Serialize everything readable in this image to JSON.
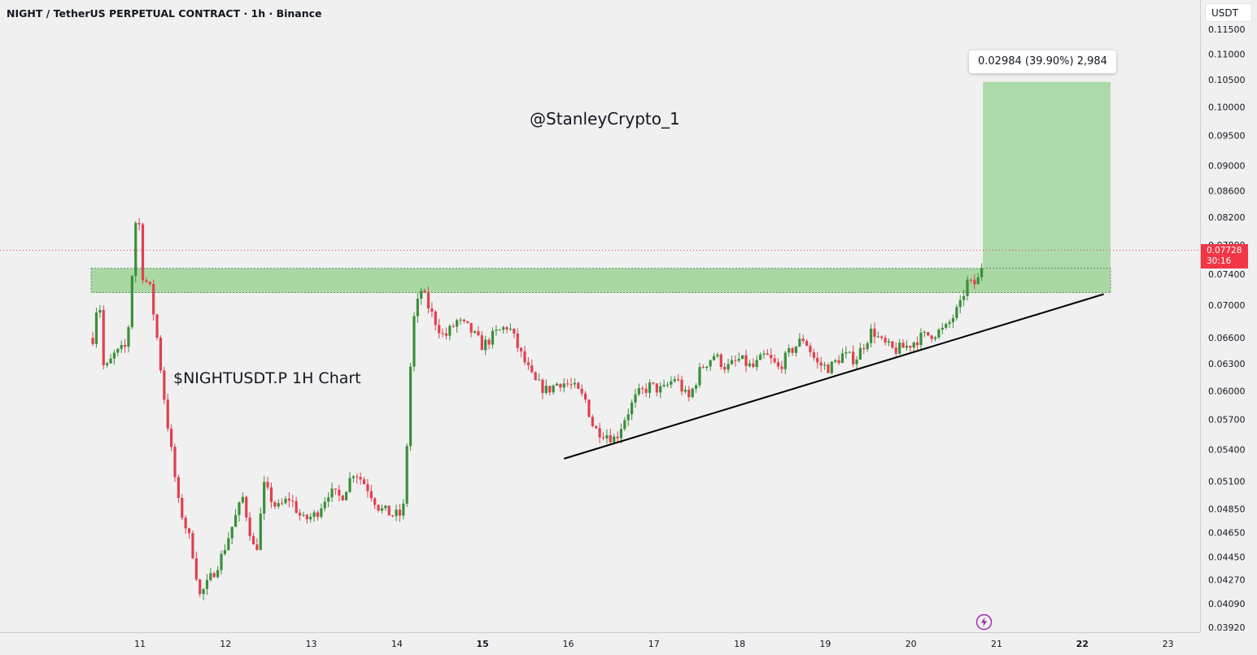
{
  "header": {
    "title": "NIGHT / TetherUS PERPETUAL CONTRACT · 1h · Binance"
  },
  "price_axis": {
    "currency": "USDT"
  },
  "annotations": {
    "watermark": "@StanleyCrypto_1",
    "chart_label": "$NIGHTUSDT.P 1H Chart",
    "measure_label": "0.02984 (39.90%) 2,984"
  },
  "last_price": {
    "value": "0.07728",
    "countdown": "30:16"
  },
  "colors": {
    "up": "#26a69a",
    "candle_up": "#3a8f3a",
    "candle_down": "#e0404f",
    "zone_fill": "#a9d8a5",
    "last_price": "#f23645",
    "trendline": "#000000"
  },
  "chart_data": {
    "type": "candlestick",
    "scale": "log",
    "ylim": [
      0.0385,
      0.119
    ],
    "y_ticks": [
      "0.11500",
      "0.11000",
      "0.10500",
      "0.10000",
      "0.09500",
      "0.09000",
      "0.08600",
      "0.08200",
      "0.07800",
      "0.07400",
      "0.07000",
      "0.06600",
      "0.06300",
      "0.06000",
      "0.05700",
      "0.05400",
      "0.05100",
      "0.04850",
      "0.04650",
      "0.04450",
      "0.04270",
      "0.04090",
      "0.03920"
    ],
    "x_ticks": [
      {
        "label": "11",
        "day": 11,
        "bold": false
      },
      {
        "label": "12",
        "day": 12,
        "bold": false
      },
      {
        "label": "13",
        "day": 13,
        "bold": false
      },
      {
        "label": "14",
        "day": 14,
        "bold": false
      },
      {
        "label": "15",
        "day": 15,
        "bold": true
      },
      {
        "label": "16",
        "day": 16,
        "bold": false
      },
      {
        "label": "17",
        "day": 17,
        "bold": false
      },
      {
        "label": "18",
        "day": 18,
        "bold": false
      },
      {
        "label": "19",
        "day": 19,
        "bold": false
      },
      {
        "label": "20",
        "day": 20,
        "bold": false
      },
      {
        "label": "21",
        "day": 21,
        "bold": false
      },
      {
        "label": "22",
        "day": 22,
        "bold": true
      },
      {
        "label": "23",
        "day": 23,
        "bold": false
      }
    ],
    "last_price": 0.07728,
    "support_zone": {
      "from_day": 10.43,
      "to_day": 22.33,
      "low": 0.0716,
      "high": 0.0748
    },
    "trendline": {
      "start": {
        "day": 15.95,
        "price": 0.0531
      },
      "end": {
        "day": 22.25,
        "price": 0.0714
      }
    },
    "target_box": {
      "from_day": 20.84,
      "to_day": 22.33,
      "low": 0.0748,
      "high": 0.1046,
      "change": "0.02984",
      "percent": "39.90%",
      "ticks": "2,984"
    },
    "waypoints": [
      [
        10.45,
        0.066
      ],
      [
        10.52,
        0.072
      ],
      [
        10.58,
        0.062
      ],
      [
        10.7,
        0.064
      ],
      [
        10.85,
        0.065
      ],
      [
        10.97,
        0.085
      ],
      [
        11.03,
        0.074
      ],
      [
        11.12,
        0.072
      ],
      [
        11.2,
        0.066
      ],
      [
        11.3,
        0.058
      ],
      [
        11.45,
        0.049
      ],
      [
        11.6,
        0.0455
      ],
      [
        11.7,
        0.0415
      ],
      [
        11.8,
        0.0425
      ],
      [
        11.95,
        0.0445
      ],
      [
        12.1,
        0.0475
      ],
      [
        12.2,
        0.0495
      ],
      [
        12.35,
        0.0445
      ],
      [
        12.45,
        0.0505
      ],
      [
        12.6,
        0.0485
      ],
      [
        12.75,
        0.0495
      ],
      [
        12.9,
        0.0475
      ],
      [
        13.05,
        0.048
      ],
      [
        13.2,
        0.05
      ],
      [
        13.35,
        0.0495
      ],
      [
        13.5,
        0.052
      ],
      [
        13.65,
        0.0505
      ],
      [
        13.8,
        0.0485
      ],
      [
        13.95,
        0.048
      ],
      [
        14.07,
        0.048
      ],
      [
        14.12,
        0.055
      ],
      [
        14.18,
        0.0675
      ],
      [
        14.28,
        0.072
      ],
      [
        14.4,
        0.069
      ],
      [
        14.55,
        0.066
      ],
      [
        14.7,
        0.068
      ],
      [
        14.85,
        0.067
      ],
      [
        15.0,
        0.065
      ],
      [
        15.15,
        0.0665
      ],
      [
        15.3,
        0.0675
      ],
      [
        15.45,
        0.064
      ],
      [
        15.6,
        0.061
      ],
      [
        15.75,
        0.06
      ],
      [
        15.9,
        0.061
      ],
      [
        16.05,
        0.0605
      ],
      [
        16.2,
        0.059
      ],
      [
        16.3,
        0.056
      ],
      [
        16.45,
        0.0555
      ],
      [
        16.55,
        0.055
      ],
      [
        16.65,
        0.057
      ],
      [
        16.8,
        0.0595
      ],
      [
        16.95,
        0.0605
      ],
      [
        17.1,
        0.06
      ],
      [
        17.25,
        0.0615
      ],
      [
        17.4,
        0.059
      ],
      [
        17.55,
        0.0625
      ],
      [
        17.7,
        0.064
      ],
      [
        17.85,
        0.0625
      ],
      [
        18.0,
        0.0635
      ],
      [
        18.15,
        0.0625
      ],
      [
        18.3,
        0.064
      ],
      [
        18.45,
        0.0625
      ],
      [
        18.6,
        0.0645
      ],
      [
        18.75,
        0.066
      ],
      [
        18.9,
        0.063
      ],
      [
        19.05,
        0.0625
      ],
      [
        19.2,
        0.064
      ],
      [
        19.35,
        0.0635
      ],
      [
        19.55,
        0.067
      ],
      [
        19.65,
        0.0655
      ],
      [
        19.8,
        0.0645
      ],
      [
        19.95,
        0.065
      ],
      [
        20.1,
        0.066
      ],
      [
        20.25,
        0.0665
      ],
      [
        20.4,
        0.067
      ],
      [
        20.52,
        0.069
      ],
      [
        20.58,
        0.07
      ],
      [
        20.65,
        0.073
      ],
      [
        20.72,
        0.0725
      ],
      [
        20.8,
        0.0735
      ],
      [
        20.86,
        0.0775
      ]
    ]
  }
}
